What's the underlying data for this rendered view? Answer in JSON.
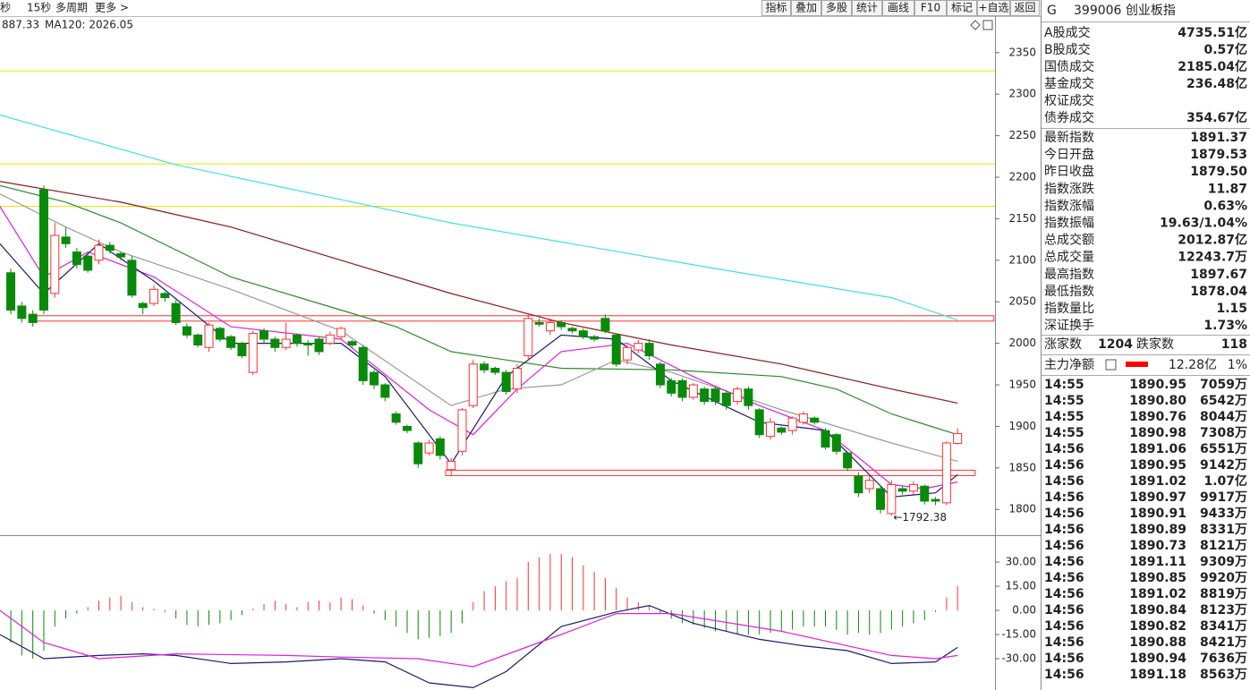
{
  "toolbar": {
    "left": [
      "秒",
      "15秒",
      "多周期",
      "更多 >"
    ],
    "buttons": [
      "指标",
      "叠加",
      "多股",
      "统计",
      "画线",
      "F10",
      "标记",
      "+自选",
      "返回"
    ]
  },
  "chart_data": [
    {
      "type": "candlestick",
      "legend": [
        {
          "text": "887.33",
          "color": "#1a7a1a"
        },
        {
          "text": "MA120: 2026.05",
          "color": "#20c8d8"
        }
      ],
      "xlim": [
        -0.98,
        89.4
      ],
      "ylim": [
        1769,
        2394
      ],
      "yticks": [
        1800,
        1850,
        1900,
        1950,
        2000,
        2050,
        2100,
        2150,
        2200,
        2250,
        2300,
        2350
      ],
      "up_color": "#ff3030",
      "down_color": "#0a8a0a",
      "open": [
        2085,
        2045,
        2035,
        2185,
        2060,
        2128,
        2110,
        2105,
        2100,
        2118,
        2108,
        2100,
        2048,
        2048,
        2060,
        2048,
        2020,
        2010,
        1995,
        2018,
        2008,
        2000,
        1965,
        2015,
        2005,
        1995,
        2010,
        2000,
        2005,
        2000,
        2008,
        2002,
        1995,
        1965,
        1950,
        1915,
        1900,
        1880,
        1868,
        1885,
        1848,
        1870,
        1925,
        1975,
        1970,
        1965,
        1945,
        1985,
        2025,
        2015,
        2025,
        2018,
        2015,
        2008,
        2030,
        2010,
        1980,
        1992,
        2000,
        1975,
        1955,
        1955,
        1935,
        1945,
        1945,
        1940,
        1930,
        1945,
        1920,
        1888,
        1898,
        1895,
        1905,
        1910,
        1895,
        1890,
        1868,
        1840,
        1825,
        1825,
        1795,
        1825,
        1822,
        1828,
        1812,
        1808,
        1879.53
      ],
      "close": [
        2040,
        2030,
        2025,
        2040,
        2130,
        2120,
        2095,
        2088,
        2118,
        2112,
        2104,
        2058,
        2043,
        2065,
        2055,
        2025,
        2010,
        1998,
        2022,
        2005,
        1995,
        1985,
        2012,
        2005,
        1995,
        2005,
        2000,
        1998,
        1990,
        2010,
        2018,
        1998,
        1955,
        1950,
        1935,
        1905,
        1895,
        1855,
        1880,
        1865,
        1858,
        1920,
        1975,
        1968,
        1965,
        1942,
        1970,
        2030,
        2023,
        2025,
        2020,
        2015,
        2008,
        2005,
        2015,
        1975,
        1995,
        2000,
        1985,
        1950,
        1940,
        1935,
        1950,
        1930,
        1930,
        1925,
        1945,
        1925,
        1890,
        1905,
        1893,
        1910,
        1915,
        1905,
        1875,
        1870,
        1850,
        1820,
        1835,
        1800,
        1830,
        1822,
        1830,
        1810,
        1810,
        1880,
        1891.37
      ],
      "high": [
        2090,
        2050,
        2040,
        2190,
        2145,
        2140,
        2115,
        2110,
        2125,
        2122,
        2110,
        2105,
        2050,
        2070,
        2062,
        2052,
        2024,
        2012,
        2025,
        2020,
        2010,
        2002,
        2015,
        2018,
        2008,
        2025,
        2012,
        2004,
        2008,
        2014,
        2020,
        2004,
        1998,
        1968,
        1952,
        1918,
        1902,
        1882,
        1884,
        1888,
        1862,
        1922,
        1980,
        1978,
        1972,
        1968,
        1975,
        2035,
        2030,
        2030,
        2028,
        2020,
        2018,
        2010,
        2035,
        2012,
        1998,
        2004,
        2005,
        1978,
        1958,
        1958,
        1952,
        1948,
        1948,
        1944,
        1948,
        1948,
        1922,
        1910,
        1900,
        1912,
        1918,
        1912,
        1898,
        1892,
        1870,
        1845,
        1840,
        1828,
        1835,
        1828,
        1834,
        1830,
        1815,
        1882,
        1897.67
      ],
      "low": [
        2035,
        2025,
        2020,
        2035,
        2055,
        2115,
        2090,
        2085,
        2095,
        2108,
        2100,
        2055,
        2035,
        2045,
        2050,
        2022,
        2006,
        1995,
        1990,
        2002,
        1992,
        1982,
        1962,
        2000,
        1990,
        1992,
        1996,
        1985,
        1986,
        1998,
        2005,
        1995,
        1950,
        1945,
        1930,
        1902,
        1892,
        1850,
        1865,
        1860,
        1840,
        1865,
        1922,
        1964,
        1962,
        1938,
        1940,
        1980,
        2020,
        2010,
        2016,
        2012,
        2005,
        2002,
        2012,
        1972,
        1975,
        1988,
        1980,
        1946,
        1936,
        1930,
        1932,
        1926,
        1926,
        1920,
        1926,
        1920,
        1886,
        1884,
        1890,
        1890,
        1902,
        1902,
        1872,
        1866,
        1846,
        1815,
        1820,
        1795,
        1792.38,
        1818,
        1818,
        1806,
        1805,
        1805,
        1878.04
      ],
      "annotation": "←1792.38",
      "hlines": [
        {
          "value": 2328,
          "color": "#e8e800"
        },
        {
          "value": 2216,
          "color": "#e8e800"
        },
        {
          "value": 2165,
          "color": "#e8e800"
        }
      ],
      "bands": [
        {
          "value": 2030,
          "from": 1.8,
          "to": 89.3,
          "color": "#ff3030"
        },
        {
          "value": 1844,
          "from": 39.5,
          "to": 87.6,
          "color": "#ff3030"
        }
      ],
      "lines": [
        {
          "color": "#40e0e8",
          "x": [
            -1,
            15,
            40,
            64,
            80,
            86
          ],
          "values": [
            2275,
            2215,
            2145,
            2090,
            2055,
            2028
          ]
        },
        {
          "color": "#8b1a1a",
          "x": [
            -1,
            10,
            20,
            30,
            40,
            50,
            60,
            70,
            80,
            86
          ],
          "values": [
            2195,
            2170,
            2140,
            2100,
            2060,
            2025,
            1998,
            1975,
            1945,
            1928
          ]
        },
        {
          "color": "#2e8b2e",
          "x": [
            -1,
            5,
            10,
            20,
            30,
            35,
            40,
            45,
            50,
            60,
            70,
            75,
            80,
            86
          ],
          "values": [
            2190,
            2170,
            2145,
            2080,
            2040,
            2020,
            1990,
            1980,
            1970,
            1968,
            1960,
            1945,
            1915,
            1890
          ]
        },
        {
          "color": "#999999",
          "x": [
            -1,
            5,
            10,
            20,
            30,
            40,
            45,
            50,
            55,
            60,
            70,
            80,
            86
          ],
          "values": [
            2180,
            2140,
            2110,
            2065,
            2015,
            1925,
            1945,
            1950,
            1980,
            1965,
            1920,
            1880,
            1858
          ]
        },
        {
          "color": "#e020e0",
          "x": [
            -1,
            3,
            7,
            13,
            20,
            30,
            38,
            42,
            46,
            50,
            56,
            62,
            68,
            74,
            80,
            83,
            86
          ],
          "values": [
            2165,
            2080,
            2110,
            2080,
            2020,
            2005,
            1920,
            1890,
            1945,
            1990,
            2000,
            1960,
            1925,
            1895,
            1830,
            1825,
            1833
          ]
        },
        {
          "color": "#1a1a6e",
          "x": [
            -1,
            3,
            8,
            13,
            20,
            30,
            34,
            40,
            45,
            50,
            55,
            60,
            68,
            74,
            80,
            84,
            86
          ],
          "values": [
            2120,
            2060,
            2120,
            2075,
            2000,
            2000,
            1960,
            1855,
            1960,
            2010,
            2005,
            1955,
            1905,
            1895,
            1815,
            1820,
            1842
          ]
        }
      ]
    },
    {
      "type": "macd",
      "xlim": [
        -0.98,
        89.4
      ],
      "ylim": [
        -48.9,
        45.6
      ],
      "yticks": [
        {
          "value": 30,
          "label": "30.00"
        },
        {
          "value": 15,
          "label": "15.00"
        },
        {
          "value": 0,
          "label": "0.00"
        },
        {
          "value": -15,
          "label": "-15.00"
        },
        {
          "value": -30,
          "label": "-30.00"
        }
      ],
      "up_color": "#ff3030",
      "down_color": "#0a8a0a",
      "values": [
        -20,
        -28,
        -30,
        -25,
        -10,
        -5,
        -2,
        2,
        6,
        8,
        9,
        5,
        2,
        1,
        -1,
        -5,
        -9,
        -10,
        -9,
        -8,
        -6,
        -3,
        1,
        4,
        6,
        4,
        2,
        5,
        6,
        5,
        8,
        7,
        3,
        -2,
        -6,
        -10,
        -14,
        -18,
        -17,
        -16,
        -14,
        -8,
        5,
        12,
        15,
        18,
        20,
        30,
        33,
        35,
        35,
        33,
        28,
        24,
        20,
        14,
        8,
        5,
        3,
        -2,
        -5,
        -8,
        -9,
        -11,
        -13,
        -13,
        -15,
        -15,
        -15,
        -14,
        -13,
        -12,
        -10,
        -10,
        -10,
        -12,
        -15,
        -14,
        -15,
        -14,
        -12,
        -10,
        -8,
        -6,
        -1,
        8,
        15
      ],
      "lines": [
        {
          "color": "#1a1a6e",
          "x": [
            -1,
            3,
            8,
            12,
            15,
            20,
            25,
            30,
            34,
            38,
            42,
            45,
            50,
            55,
            58,
            62,
            68,
            72,
            76,
            80,
            84,
            86
          ],
          "values": [
            -15,
            -30,
            -28,
            -27,
            -28,
            -33,
            -32,
            -30,
            -32,
            -45,
            -48,
            -38,
            -10,
            -1,
            3,
            -8,
            -18,
            -22,
            -25,
            -33,
            -32,
            -23
          ]
        },
        {
          "color": "#e020e0",
          "x": [
            -1,
            3,
            8,
            15,
            25,
            30,
            37,
            42,
            46,
            50,
            55,
            60,
            70,
            80,
            84,
            86
          ],
          "values": [
            0,
            -20,
            -30,
            -27,
            -28,
            -29,
            -30,
            -35,
            -25,
            -15,
            -2,
            -2,
            -13,
            -28,
            -30,
            -28
          ]
        }
      ]
    }
  ],
  "panel": {
    "prefix": "G",
    "title": "399006 创业板指",
    "turnover": [
      {
        "label": "A股成交",
        "value": "4735.51亿",
        "color": "#e06000"
      },
      {
        "label": "B股成交",
        "value": "0.57亿",
        "color": "#e06000"
      },
      {
        "label": "国债成交",
        "value": "2185.04亿",
        "color": "#e06000"
      },
      {
        "label": "基金成交",
        "value": "236.48亿",
        "color": "#e06000"
      },
      {
        "label": "权证成交"
      },
      {
        "label": "债券成交",
        "value": "354.67亿",
        "color": "#e06000"
      }
    ],
    "stats": [
      {
        "label": "最新指数",
        "value": "1891.37",
        "color": "#e00000"
      },
      {
        "label": "今日开盘",
        "value": "1879.53",
        "color": "#e00000"
      },
      {
        "label": "昨日收盘",
        "value": "1879.50",
        "color": "#000000"
      },
      {
        "label": "指数涨跌",
        "value": "11.87",
        "color": "#e00000"
      },
      {
        "label": "指数涨幅",
        "value": "0.63%",
        "color": "#e00000"
      },
      {
        "label": "指数振幅",
        "value": "19.63/1.04%",
        "color": "#000000"
      },
      {
        "label": "总成交额",
        "value": "2012.87亿",
        "color": "#e06000"
      },
      {
        "label": "总成交量",
        "value": "12243.7万",
        "color": "#e06000"
      },
      {
        "label": "最高指数",
        "value": "1897.67",
        "color": "#e00000"
      },
      {
        "label": "最低指数",
        "value": "1878.04",
        "color": "#008000"
      },
      {
        "label": "指数量比",
        "value": "1.15",
        "color": "#e00000"
      },
      {
        "label": "深证换手",
        "value": "1.73%",
        "color": "#000000"
      }
    ],
    "breadth": {
      "up_label": "涨家数",
      "up": "1204",
      "down_label": "跌家数",
      "down": "118"
    },
    "main_force": {
      "label": "主力净额",
      "value": "12.28亿",
      "pct": "1%"
    },
    "ticks": [
      [
        "14:55",
        "1890.95",
        "7059万"
      ],
      [
        "14:55",
        "1890.80",
        "6542万"
      ],
      [
        "14:55",
        "1890.76",
        "8044万"
      ],
      [
        "14:55",
        "1890.98",
        "7308万"
      ],
      [
        "14:56",
        "1891.06",
        "6551万"
      ],
      [
        "14:56",
        "1890.95",
        "9142万"
      ],
      [
        "14:56",
        "1891.02",
        "1.07亿"
      ],
      [
        "14:56",
        "1890.97",
        "9917万"
      ],
      [
        "14:56",
        "1890.91",
        "9433万"
      ],
      [
        "14:56",
        "1890.89",
        "8331万"
      ],
      [
        "14:56",
        "1890.73",
        "8121万"
      ],
      [
        "14:56",
        "1891.11",
        "9309万"
      ],
      [
        "14:56",
        "1890.85",
        "9920万"
      ],
      [
        "14:56",
        "1891.02",
        "8819万"
      ],
      [
        "14:56",
        "1890.84",
        "8123万"
      ],
      [
        "14:56",
        "1890.82",
        "8341万"
      ],
      [
        "14:56",
        "1890.88",
        "8421万"
      ],
      [
        "14:56",
        "1890.94",
        "7636万"
      ],
      [
        "14:56",
        "1891.18",
        "8563万"
      ]
    ]
  }
}
